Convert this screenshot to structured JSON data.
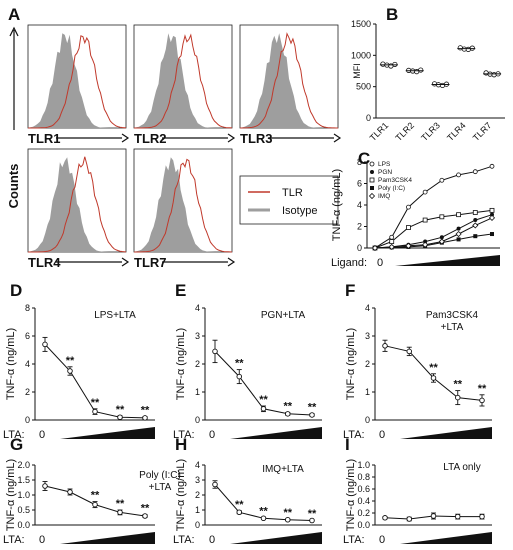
{
  "panel_letters": [
    "A",
    "B",
    "C",
    "D",
    "E",
    "F",
    "G",
    "H",
    "I"
  ],
  "histograms": {
    "counts_label": "Counts",
    "panels": [
      "TLR1",
      "TLR2",
      "TLR3",
      "TLR4",
      "TLR7"
    ],
    "legend": [
      "TLR",
      "Isotype"
    ],
    "colors": {
      "tlr": "#c0392b",
      "isotype": "#9e9e9e"
    }
  },
  "panel_b": {
    "type": "scatter",
    "ylabel": "MFI",
    "ylim": [
      0,
      1500
    ],
    "yticks": [
      "0",
      "500",
      "1000",
      "1500"
    ],
    "categories": [
      "TLR1",
      "TLR2",
      "TLR3",
      "TLR4",
      "TLR7"
    ],
    "values": [
      [
        860,
        845,
        830,
        855
      ],
      [
        760,
        750,
        740,
        765
      ],
      [
        545,
        530,
        520,
        540
      ],
      [
        1120,
        1100,
        1095,
        1115
      ],
      [
        720,
        700,
        690,
        705
      ]
    ]
  },
  "panel_c": {
    "type": "line",
    "ylabel": "TNF-α (ng/mL)",
    "ylim": [
      0,
      8
    ],
    "yticks": [
      "0",
      "2",
      "4",
      "6",
      "8"
    ],
    "x_label": "Ligand:",
    "x_zero": "0",
    "series": [
      {
        "name": "LPS",
        "values": [
          0,
          1.0,
          3.8,
          5.2,
          6.3,
          6.8,
          7.1,
          7.6
        ]
      },
      {
        "name": "PGN",
        "values": [
          0,
          0.1,
          0.3,
          0.6,
          1.0,
          1.8,
          2.6,
          3.1
        ]
      },
      {
        "name": "Pam3CSK4",
        "values": [
          0,
          0.6,
          1.9,
          2.6,
          2.9,
          3.1,
          3.3,
          3.5
        ]
      },
      {
        "name": "Poly (I:C)",
        "values": [
          0,
          0.05,
          0.1,
          0.2,
          0.5,
          0.8,
          1.1,
          1.3
        ]
      },
      {
        "name": "IMQ",
        "values": [
          0,
          0.1,
          0.2,
          0.3,
          0.6,
          1.3,
          2.1,
          2.8
        ]
      }
    ]
  },
  "line_panels": [
    {
      "title": "LPS+LTA",
      "ylim": [
        0,
        8
      ],
      "yticks": [
        "0",
        "2",
        "4",
        "6",
        "8"
      ],
      "values": [
        5.4,
        3.5,
        0.6,
        0.2,
        0.15
      ],
      "errors": [
        0.5,
        0.3,
        0.2,
        0.1,
        0.1
      ],
      "stars": [
        "",
        "**",
        "**",
        "**",
        "**"
      ]
    },
    {
      "title": "PGN+LTA",
      "ylim": [
        0,
        4
      ],
      "yticks": [
        "0",
        "1",
        "2",
        "3",
        "4"
      ],
      "values": [
        2.45,
        1.55,
        0.4,
        0.22,
        0.18
      ],
      "errors": [
        0.4,
        0.25,
        0.1,
        0.05,
        0.05
      ],
      "stars": [
        "",
        "**",
        "**",
        "**",
        "**"
      ]
    },
    {
      "title": "Pam3CSK4 +LTA",
      "ylim": [
        0,
        4
      ],
      "yticks": [
        "0",
        "1",
        "2",
        "3",
        "4"
      ],
      "values": [
        2.65,
        2.45,
        1.5,
        0.8,
        0.7
      ],
      "errors": [
        0.2,
        0.15,
        0.15,
        0.25,
        0.2
      ],
      "stars": [
        "",
        "",
        "**",
        "**",
        "**"
      ]
    },
    {
      "title": "Poly (I:C) +LTA",
      "ylim": [
        0,
        2
      ],
      "yticks": [
        "0.0",
        "0.5",
        "1.0",
        "1.5",
        "2.0"
      ],
      "values": [
        1.3,
        1.1,
        0.68,
        0.42,
        0.3
      ],
      "errors": [
        0.15,
        0.1,
        0.1,
        0.08,
        0.05
      ],
      "stars": [
        "",
        "",
        "**",
        "**",
        "**"
      ]
    },
    {
      "title": "IMQ+LTA",
      "ylim": [
        0,
        4
      ],
      "yticks": [
        "0",
        "1",
        "2",
        "3",
        "4"
      ],
      "values": [
        2.7,
        0.85,
        0.45,
        0.35,
        0.3
      ],
      "errors": [
        0.25,
        0.1,
        0.05,
        0.05,
        0.05
      ],
      "stars": [
        "",
        "**",
        "**",
        "**",
        "**"
      ]
    },
    {
      "title": "LTA only",
      "ylim": [
        0,
        1
      ],
      "yticks": [
        "0.0",
        "0.2",
        "0.4",
        "0.6",
        "0.8",
        "1.0"
      ],
      "values": [
        0.12,
        0.1,
        0.15,
        0.14,
        0.14
      ],
      "errors": [
        0.02,
        0.03,
        0.05,
        0.04,
        0.04
      ],
      "stars": [
        "",
        "",
        "",
        "",
        ""
      ]
    }
  ],
  "shared": {
    "ylabel": "TNF-α (ng/mL)",
    "x_label": "LTA:",
    "x_zero": "0"
  }
}
